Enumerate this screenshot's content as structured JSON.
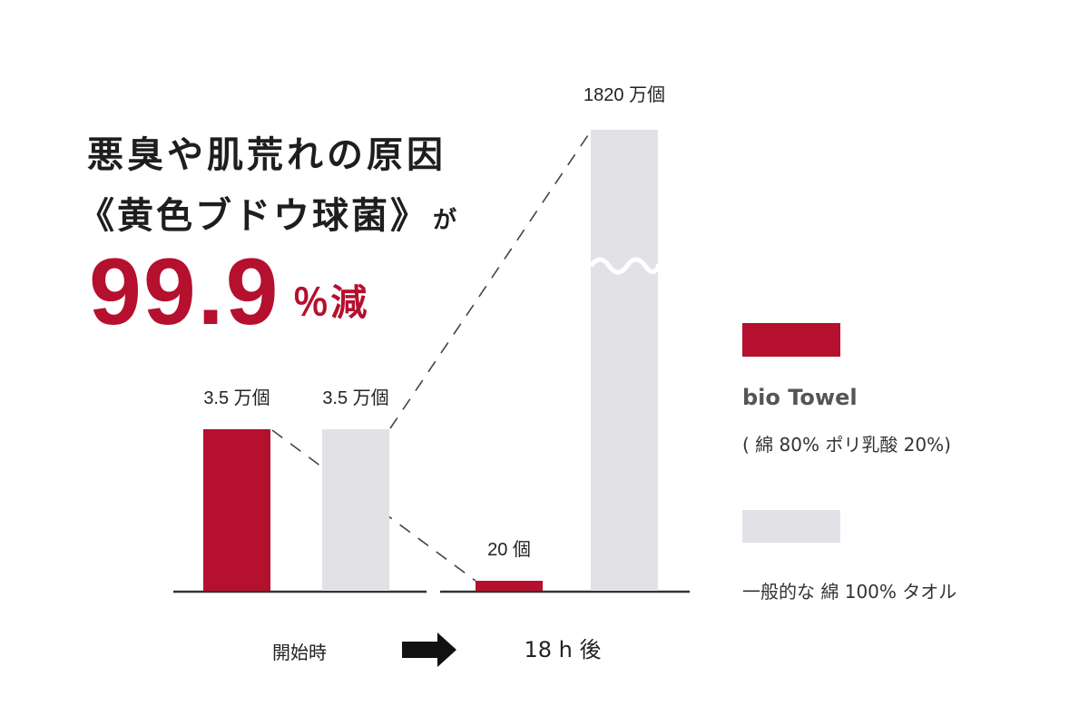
{
  "headline": {
    "line1": "悪臭や肌荒れの原因",
    "line2": "《黄色ブドウ球菌》",
    "line2_suffix": "が",
    "reduction_value": "99.9",
    "reduction_unit": "％減"
  },
  "colors": {
    "bio_towel": "#b5102e",
    "cotton_towel": "#e2e1e5",
    "axis": "#333333"
  },
  "chart_data": {
    "type": "bar",
    "unit": "個",
    "groups": [
      {
        "label": "開始時",
        "bars": [
          {
            "series": "bio Towel",
            "value": 35000,
            "label": "3.5 万個"
          },
          {
            "series": "一般的な 綿 100% タオル",
            "value": 35000,
            "label": "3.5 万個"
          }
        ]
      },
      {
        "label": "18 h 後",
        "bars": [
          {
            "series": "bio Towel",
            "value": 20,
            "label": "20 個"
          },
          {
            "series": "一般的な 綿 100% タオル",
            "value": 18200000,
            "label": "1820 万個"
          }
        ]
      }
    ],
    "axis_break": true,
    "legend": {
      "placement": "right",
      "items": [
        {
          "name": "bio Towel",
          "note": "( 綿 80% ポリ乳酸 20%)",
          "color": "#b5102e"
        },
        {
          "name": "一般的な 綿 100% タオル",
          "note": "",
          "color": "#e2e1e5"
        }
      ]
    }
  }
}
